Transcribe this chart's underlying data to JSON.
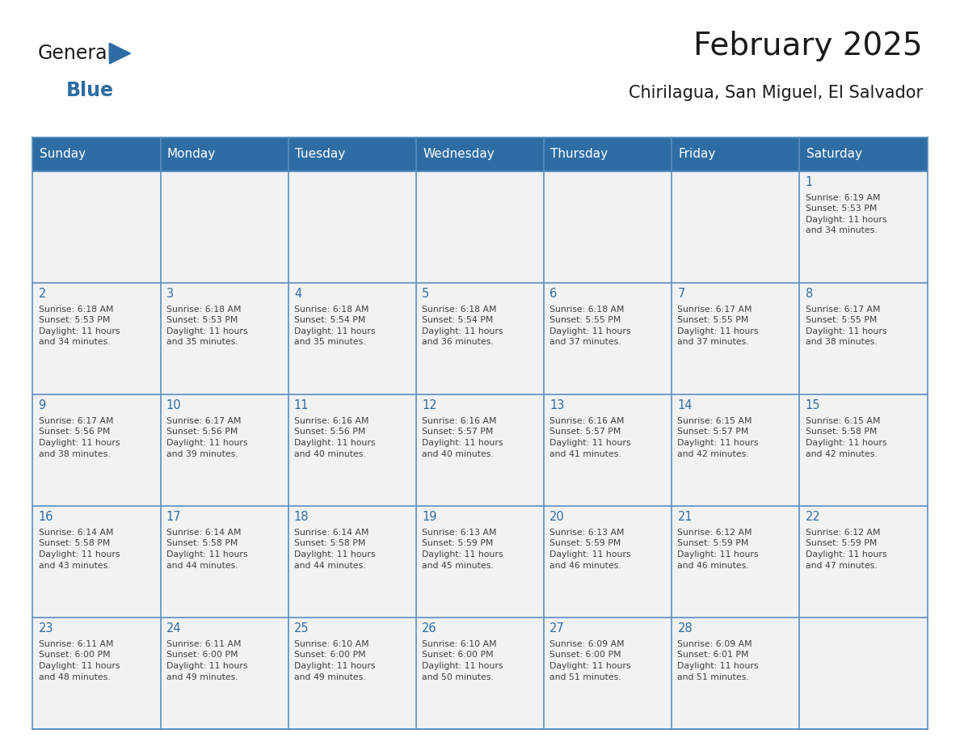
{
  "title": "February 2025",
  "subtitle": "Chirilagua, San Miguel, El Salvador",
  "header_bg_color": "#2E6DA4",
  "header_text_color": "#FFFFFF",
  "bg_color": "#FFFFFF",
  "cell_bg_color": "#F2F2F2",
  "day_number_color": "#2E6DA4",
  "text_color": "#404040",
  "grid_color": "#5A8FC0",
  "days_of_week": [
    "Sunday",
    "Monday",
    "Tuesday",
    "Wednesday",
    "Thursday",
    "Friday",
    "Saturday"
  ],
  "weeks": [
    [
      {
        "day": null,
        "info": null
      },
      {
        "day": null,
        "info": null
      },
      {
        "day": null,
        "info": null
      },
      {
        "day": null,
        "info": null
      },
      {
        "day": null,
        "info": null
      },
      {
        "day": null,
        "info": null
      },
      {
        "day": 1,
        "info": "Sunrise: 6:19 AM\nSunset: 5:53 PM\nDaylight: 11 hours\nand 34 minutes."
      }
    ],
    [
      {
        "day": 2,
        "info": "Sunrise: 6:18 AM\nSunset: 5:53 PM\nDaylight: 11 hours\nand 34 minutes."
      },
      {
        "day": 3,
        "info": "Sunrise: 6:18 AM\nSunset: 5:53 PM\nDaylight: 11 hours\nand 35 minutes."
      },
      {
        "day": 4,
        "info": "Sunrise: 6:18 AM\nSunset: 5:54 PM\nDaylight: 11 hours\nand 35 minutes."
      },
      {
        "day": 5,
        "info": "Sunrise: 6:18 AM\nSunset: 5:54 PM\nDaylight: 11 hours\nand 36 minutes."
      },
      {
        "day": 6,
        "info": "Sunrise: 6:18 AM\nSunset: 5:55 PM\nDaylight: 11 hours\nand 37 minutes."
      },
      {
        "day": 7,
        "info": "Sunrise: 6:17 AM\nSunset: 5:55 PM\nDaylight: 11 hours\nand 37 minutes."
      },
      {
        "day": 8,
        "info": "Sunrise: 6:17 AM\nSunset: 5:55 PM\nDaylight: 11 hours\nand 38 minutes."
      }
    ],
    [
      {
        "day": 9,
        "info": "Sunrise: 6:17 AM\nSunset: 5:56 PM\nDaylight: 11 hours\nand 38 minutes."
      },
      {
        "day": 10,
        "info": "Sunrise: 6:17 AM\nSunset: 5:56 PM\nDaylight: 11 hours\nand 39 minutes."
      },
      {
        "day": 11,
        "info": "Sunrise: 6:16 AM\nSunset: 5:56 PM\nDaylight: 11 hours\nand 40 minutes."
      },
      {
        "day": 12,
        "info": "Sunrise: 6:16 AM\nSunset: 5:57 PM\nDaylight: 11 hours\nand 40 minutes."
      },
      {
        "day": 13,
        "info": "Sunrise: 6:16 AM\nSunset: 5:57 PM\nDaylight: 11 hours\nand 41 minutes."
      },
      {
        "day": 14,
        "info": "Sunrise: 6:15 AM\nSunset: 5:57 PM\nDaylight: 11 hours\nand 42 minutes."
      },
      {
        "day": 15,
        "info": "Sunrise: 6:15 AM\nSunset: 5:58 PM\nDaylight: 11 hours\nand 42 minutes."
      }
    ],
    [
      {
        "day": 16,
        "info": "Sunrise: 6:14 AM\nSunset: 5:58 PM\nDaylight: 11 hours\nand 43 minutes."
      },
      {
        "day": 17,
        "info": "Sunrise: 6:14 AM\nSunset: 5:58 PM\nDaylight: 11 hours\nand 44 minutes."
      },
      {
        "day": 18,
        "info": "Sunrise: 6:14 AM\nSunset: 5:58 PM\nDaylight: 11 hours\nand 44 minutes."
      },
      {
        "day": 19,
        "info": "Sunrise: 6:13 AM\nSunset: 5:59 PM\nDaylight: 11 hours\nand 45 minutes."
      },
      {
        "day": 20,
        "info": "Sunrise: 6:13 AM\nSunset: 5:59 PM\nDaylight: 11 hours\nand 46 minutes."
      },
      {
        "day": 21,
        "info": "Sunrise: 6:12 AM\nSunset: 5:59 PM\nDaylight: 11 hours\nand 46 minutes."
      },
      {
        "day": 22,
        "info": "Sunrise: 6:12 AM\nSunset: 5:59 PM\nDaylight: 11 hours\nand 47 minutes."
      }
    ],
    [
      {
        "day": 23,
        "info": "Sunrise: 6:11 AM\nSunset: 6:00 PM\nDaylight: 11 hours\nand 48 minutes."
      },
      {
        "day": 24,
        "info": "Sunrise: 6:11 AM\nSunset: 6:00 PM\nDaylight: 11 hours\nand 49 minutes."
      },
      {
        "day": 25,
        "info": "Sunrise: 6:10 AM\nSunset: 6:00 PM\nDaylight: 11 hours\nand 49 minutes."
      },
      {
        "day": 26,
        "info": "Sunrise: 6:10 AM\nSunset: 6:00 PM\nDaylight: 11 hours\nand 50 minutes."
      },
      {
        "day": 27,
        "info": "Sunrise: 6:09 AM\nSunset: 6:00 PM\nDaylight: 11 hours\nand 51 minutes."
      },
      {
        "day": 28,
        "info": "Sunrise: 6:09 AM\nSunset: 6:01 PM\nDaylight: 11 hours\nand 51 minutes."
      },
      {
        "day": null,
        "info": null
      }
    ]
  ],
  "logo_color_general": "#1a1a1a",
  "logo_color_blue": "#2E6DA4",
  "logo_triangle_color": "#2E6DA4",
  "title_color": "#1a1a1a",
  "subtitle_color": "#1a1a1a"
}
